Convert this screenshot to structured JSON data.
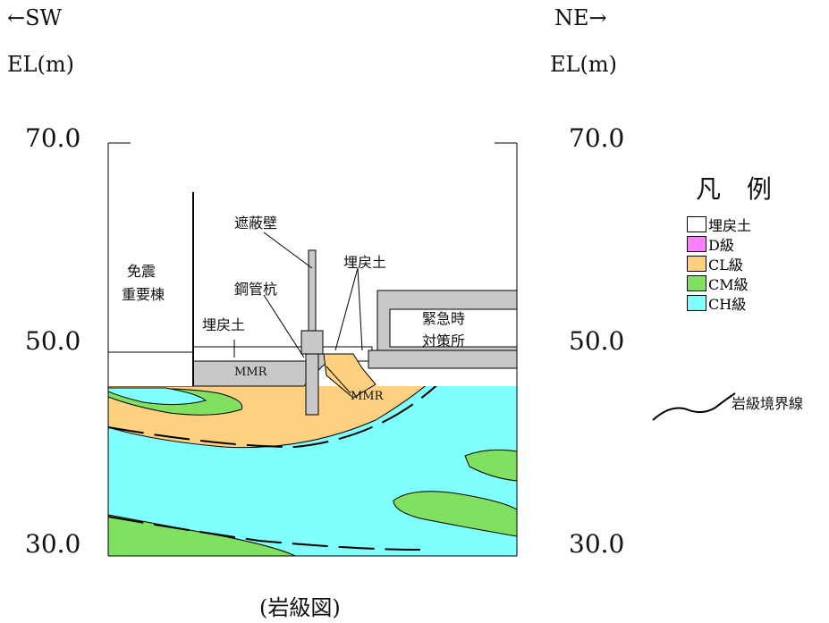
{
  "header": {
    "sw_label": "←SW",
    "ne_label": "NE→",
    "el_left": "EL(m)",
    "el_right": "EL(m)"
  },
  "axis": {
    "left_ticks": [
      "70.0",
      "50.0",
      "30.0"
    ],
    "right_ticks": [
      "70.0",
      "50.0",
      "30.0"
    ]
  },
  "labels": {
    "menshin_line1": "免震",
    "menshin_line2": "重要棟",
    "shaheiheki": "遮蔽壁",
    "umemodoshi_top": "埋戻土",
    "koukanko": "鋼管杭",
    "umemodoshi_left": "埋戻土",
    "kinkyuji_line1": "緊急時",
    "kinkyuji_line2": "対策所",
    "mmr_left": "MMR",
    "mmr_right": "MMR"
  },
  "legend": {
    "title": "凡 例",
    "items": [
      {
        "label": "埋戻土",
        "color": "#ffffff"
      },
      {
        "label": "D級",
        "color": "#ff80ff"
      },
      {
        "label": "CL級",
        "color": "#ffd080"
      },
      {
        "label": "CM級",
        "color": "#80e060"
      },
      {
        "label": "CH級",
        "color": "#80ffff"
      }
    ],
    "boundary_label": "岩級境界線"
  },
  "caption": "(岩級図)",
  "colors": {
    "ch": "#80ffff",
    "cl": "#ffd080",
    "cm": "#80e060",
    "concrete": "#c8c8c8"
  }
}
